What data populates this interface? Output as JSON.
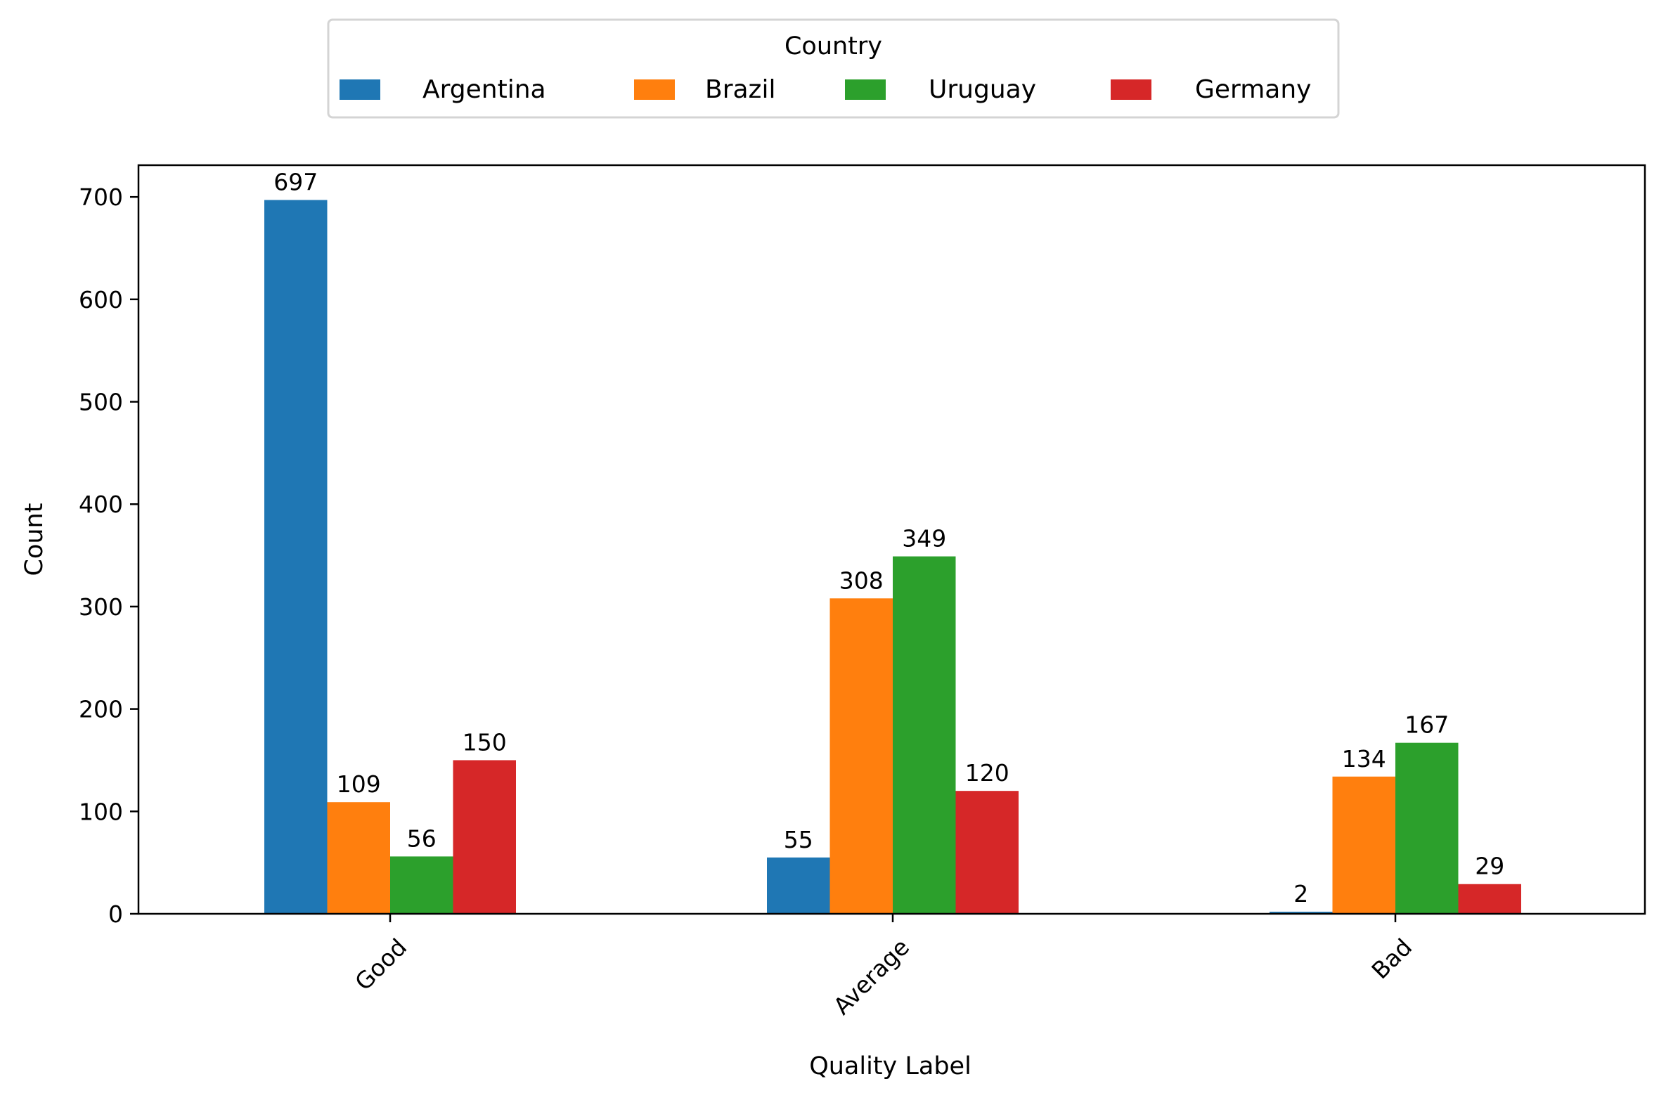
{
  "chart_data": {
    "type": "bar",
    "title": "",
    "xlabel": "Quality Label",
    "ylabel": "Count",
    "categories": [
      "Good",
      "Average",
      "Bad"
    ],
    "series": [
      {
        "name": "Argentina",
        "color": "#1f77b4",
        "values": [
          697,
          55,
          2
        ]
      },
      {
        "name": "Brazil",
        "color": "#ff7f0e",
        "values": [
          109,
          308,
          134
        ]
      },
      {
        "name": "Uruguay",
        "color": "#2ca02c",
        "values": [
          56,
          349,
          167
        ]
      },
      {
        "name": "Germany",
        "color": "#d62728",
        "values": [
          150,
          120,
          29
        ]
      }
    ],
    "ylim": [
      0,
      731
    ],
    "yticks": [
      0,
      100,
      200,
      300,
      400,
      500,
      600,
      700
    ],
    "grid": false,
    "legend": {
      "title": "Country",
      "position": "top-center-outside",
      "ncol": 4
    },
    "xtick_rotation": 45,
    "data_labels": true
  }
}
